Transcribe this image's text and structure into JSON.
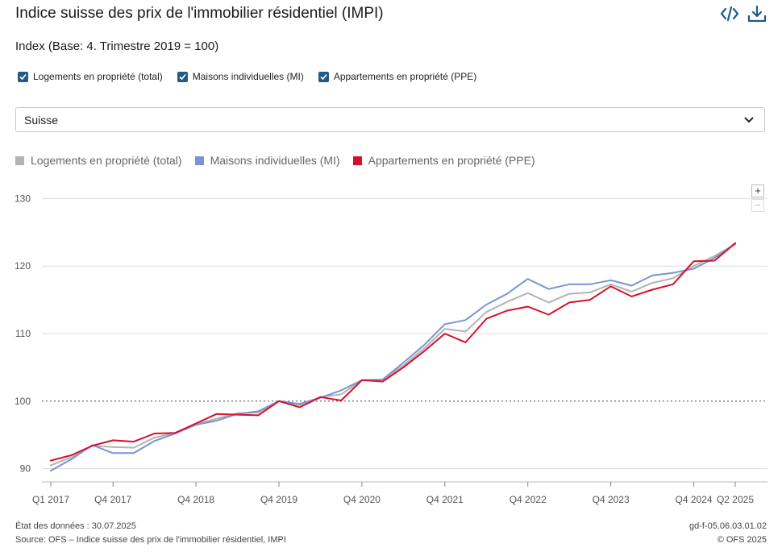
{
  "title": "Indice suisse des prix de l'immobilier résidentiel (IMPI)",
  "subtitle": "Index (Base: 4. Trimestre 2019 = 100)",
  "icons": {
    "embed": "code-icon",
    "download": "download-icon"
  },
  "checkboxes": [
    {
      "label": "Logements en propriété (total)",
      "checked": true
    },
    {
      "label": "Maisons individuelles (MI)",
      "checked": true
    },
    {
      "label": "Appartements en propriété (PPE)",
      "checked": true
    }
  ],
  "region_select": {
    "value": "Suisse"
  },
  "zoom": {
    "in": "+",
    "out": "−"
  },
  "footer": {
    "state": "État des données : 30.07.2025",
    "source": "Source: OFS – Indice suisse des prix de l'immobilier résidentiel, IMPI",
    "code": "gd-f-05.06.03.01.02",
    "copyright": "© OFS 2025"
  },
  "chart_data": {
    "type": "line",
    "ylim": [
      89,
      131
    ],
    "yticks": [
      90,
      100,
      110,
      120,
      130
    ],
    "reference_line": 100,
    "x": [
      "Q1 2017",
      "Q2 2017",
      "Q3 2017",
      "Q4 2017",
      "Q1 2018",
      "Q2 2018",
      "Q3 2018",
      "Q4 2018",
      "Q1 2019",
      "Q2 2019",
      "Q3 2019",
      "Q4 2019",
      "Q1 2020",
      "Q2 2020",
      "Q3 2020",
      "Q4 2020",
      "Q1 2021",
      "Q2 2021",
      "Q3 2021",
      "Q4 2021",
      "Q1 2022",
      "Q2 2022",
      "Q3 2022",
      "Q4 2022",
      "Q1 2023",
      "Q2 2023",
      "Q3 2023",
      "Q4 2023",
      "Q1 2024",
      "Q2 2024",
      "Q3 2024",
      "Q4 2024",
      "Q1 2025",
      "Q2 2025"
    ],
    "xtick_labels": [
      {
        "index": 0,
        "label": "Q1 2017"
      },
      {
        "index": 3,
        "label": "Q4 2017"
      },
      {
        "index": 7,
        "label": "Q4 2018"
      },
      {
        "index": 11,
        "label": "Q4 2019"
      },
      {
        "index": 15,
        "label": "Q4 2020"
      },
      {
        "index": 19,
        "label": "Q4 2021"
      },
      {
        "index": 23,
        "label": "Q4 2022"
      },
      {
        "index": 27,
        "label": "Q4 2023"
      },
      {
        "index": 31,
        "label": "Q4 2024"
      },
      {
        "index": 33,
        "label": "Q2 2025"
      }
    ],
    "series": [
      {
        "name": "Logements en propriété (total)",
        "color": "#b3b3b3",
        "values": [
          90.5,
          91.7,
          93.4,
          93.2,
          93.1,
          94.6,
          95.3,
          96.6,
          97.4,
          98.2,
          98.3,
          100.0,
          99.4,
          100.6,
          101.0,
          103.1,
          103.2,
          105.3,
          107.8,
          110.7,
          110.3,
          113.2,
          114.7,
          116.0,
          114.6,
          115.9,
          116.1,
          117.3,
          116.2,
          117.5,
          118.2,
          120.0,
          121.5,
          123.2
        ]
      },
      {
        "name": "Maisons individuelles (MI)",
        "color": "#7b93d6",
        "values": [
          89.7,
          91.4,
          93.5,
          92.3,
          92.3,
          94.1,
          95.2,
          96.5,
          97.1,
          98.1,
          98.5,
          100.0,
          99.6,
          100.5,
          101.6,
          103.1,
          103.2,
          105.7,
          108.3,
          111.4,
          112.0,
          114.3,
          115.9,
          118.1,
          116.6,
          117.3,
          117.3,
          117.9,
          117.1,
          118.6,
          119.0,
          119.6,
          121.2,
          123.3
        ]
      },
      {
        "name": "Appartements en propriété (PPE)",
        "color": "#d70f2b",
        "values": [
          91.2,
          92.0,
          93.4,
          94.2,
          94.0,
          95.2,
          95.3,
          96.7,
          98.1,
          98.0,
          97.9,
          100.0,
          99.1,
          100.6,
          100.1,
          103.1,
          102.9,
          105.0,
          107.4,
          110.0,
          108.7,
          112.2,
          113.4,
          114.0,
          112.8,
          114.6,
          115.0,
          117.0,
          115.5,
          116.5,
          117.3,
          120.7,
          120.8,
          123.4
        ]
      }
    ]
  }
}
